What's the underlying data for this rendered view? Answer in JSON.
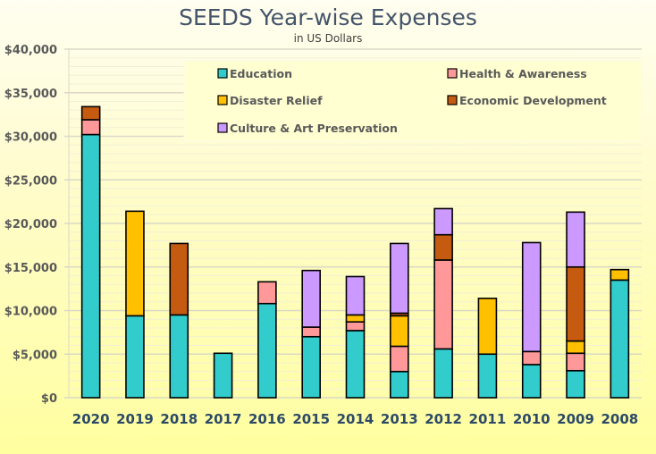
{
  "chart_data": {
    "type": "bar",
    "stacked": true,
    "title": "SEEDS Year-wise Expenses",
    "subtitle": "in US Dollars",
    "xlabel": "",
    "ylabel": "",
    "ylim": [
      0,
      40000
    ],
    "y_major_step": 5000,
    "y_minor_step": 1000,
    "grid": true,
    "legend_position": "top-right (inside plot)",
    "yticks": [
      "$0",
      "$5,000",
      "$10,000",
      "$15,000",
      "$20,000",
      "$25,000",
      "$30,000",
      "$35,000",
      "$40,000"
    ],
    "categories": [
      "2020",
      "2019",
      "2018",
      "2017",
      "2016",
      "2015",
      "2014",
      "2013",
      "2012",
      "2011",
      "2010",
      "2009",
      "2008"
    ],
    "series": [
      {
        "name": "Education",
        "color": "#33cccc",
        "values": [
          30200,
          9400,
          9500,
          5100,
          10800,
          7000,
          7700,
          3000,
          5600,
          5000,
          3800,
          3100,
          13500
        ]
      },
      {
        "name": "Health & Awareness",
        "color": "#ff9999",
        "values": [
          1700,
          0,
          0,
          0,
          2500,
          1100,
          1000,
          2900,
          10200,
          0,
          1500,
          2000,
          0
        ]
      },
      {
        "name": "Disaster Relief",
        "color": "#ffc000",
        "values": [
          0,
          12000,
          0,
          0,
          0,
          0,
          800,
          3500,
          0,
          6400,
          0,
          1400,
          1200
        ]
      },
      {
        "name": "Economic Development",
        "color": "#c55a11",
        "values": [
          1500,
          0,
          8200,
          0,
          0,
          0,
          0,
          300,
          2900,
          0,
          0,
          8500,
          0
        ]
      },
      {
        "name": "Culture & Art Preservation",
        "color": "#cc99ff",
        "values": [
          0,
          0,
          0,
          0,
          0,
          6500,
          4400,
          8000,
          3000,
          0,
          12500,
          6300,
          0
        ]
      }
    ],
    "legend_order": [
      0,
      1,
      2,
      3,
      4
    ]
  }
}
